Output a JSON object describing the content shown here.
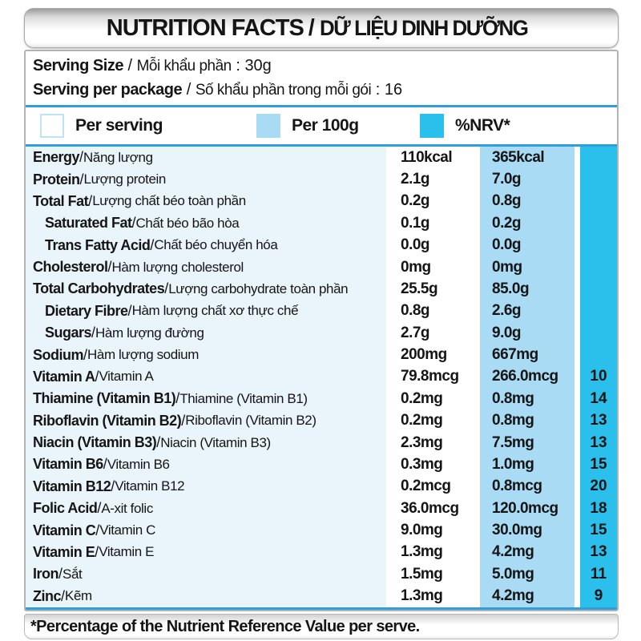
{
  "colors": {
    "nrv_cyan": "#2bbfeb",
    "per100g_blue": "#a9dbf4",
    "label_pale_blue": "#eaf4fb",
    "divider_blue": "#2e9fda",
    "panel_border_gray": "#b3b3b3"
  },
  "header": {
    "title_en": "NUTRITION FACTS",
    "sep": "/",
    "title_vi": "DỮ LIỆU DINH DƯỠNG"
  },
  "serving_info": {
    "lines": [
      {
        "en": "Serving Size",
        "sep": " / ",
        "vi": "Mỗi khẩu phần",
        "colon": " : ",
        "value": "30g"
      },
      {
        "en": "Serving per package",
        "sep": " / ",
        "vi": "Số khẩu phần trong mỗi gói",
        "colon": " : ",
        "value": "16"
      }
    ]
  },
  "legend": {
    "items": [
      {
        "label": "Per serving",
        "swatch": "per-serving-white"
      },
      {
        "label": "Per 100g",
        "swatch": "per-100g-light-blue"
      },
      {
        "label": "%NRV*",
        "swatch": "nrv-cyan"
      }
    ]
  },
  "table": {
    "separator": " / ",
    "columns": [
      "nutrient",
      "per_serving",
      "per_100g",
      "nrv_percent"
    ],
    "rows": [
      {
        "en": "Energy",
        "vi": "Năng lượng",
        "per_serving": "110kcal",
        "per_100g": "365kcal",
        "nrv": "",
        "indent": false
      },
      {
        "en": "Protein",
        "vi": "Lượng protein",
        "per_serving": "2.1g",
        "per_100g": "7.0g",
        "nrv": "",
        "indent": false
      },
      {
        "en": "Total Fat",
        "vi": "Lượng chất béo toàn phần",
        "per_serving": "0.2g",
        "per_100g": "0.8g",
        "nrv": "",
        "indent": false
      },
      {
        "en": "Saturated Fat",
        "vi": "Chất béo bão hòa",
        "per_serving": "0.1g",
        "per_100g": "0.2g",
        "nrv": "",
        "indent": true
      },
      {
        "en": "Trans Fatty Acid",
        "vi": "Chất béo chuyển hóa",
        "per_serving": "0.0g",
        "per_100g": "0.0g",
        "nrv": "",
        "indent": true
      },
      {
        "en": "Cholesterol",
        "vi": "Hàm lượng cholesterol",
        "per_serving": "0mg",
        "per_100g": "0mg",
        "nrv": "",
        "indent": false
      },
      {
        "en": "Total Carbohydrates",
        "vi": "Lượng carbohydrate toàn phần",
        "per_serving": "25.5g",
        "per_100g": "85.0g",
        "nrv": "",
        "indent": false
      },
      {
        "en": "Dietary Fibre",
        "vi": "Hàm lượng chất xơ thực chế",
        "per_serving": "0.8g",
        "per_100g": "2.6g",
        "nrv": "",
        "indent": true
      },
      {
        "en": "Sugars",
        "vi": "Hàm lượng đường",
        "per_serving": "2.7g",
        "per_100g": "9.0g",
        "nrv": "",
        "indent": true
      },
      {
        "en": "Sodium",
        "vi": "Hàm lượng sodium",
        "per_serving": "200mg",
        "per_100g": "667mg",
        "nrv": "",
        "indent": false
      },
      {
        "en": "Vitamin A",
        "vi": "Vitamin A",
        "per_serving": "79.8mcg",
        "per_100g": "266.0mcg",
        "nrv": "10",
        "indent": false
      },
      {
        "en": "Thiamine (Vitamin B1)",
        "vi": "Thiamine (Vitamin B1)",
        "per_serving": "0.2mg",
        "per_100g": "0.8mg",
        "nrv": "14",
        "indent": false
      },
      {
        "en": "Riboflavin (Vitamin B2)",
        "vi": "Riboflavin (Vitamin B2)",
        "per_serving": "0.2mg",
        "per_100g": "0.8mg",
        "nrv": "13",
        "indent": false
      },
      {
        "en": "Niacin (Vitamin B3)",
        "vi": "Niacin (Vitamin B3)",
        "per_serving": "2.3mg",
        "per_100g": "7.5mg",
        "nrv": "13",
        "indent": false
      },
      {
        "en": "Vitamin B6",
        "vi": "Vitamin B6",
        "per_serving": "0.3mg",
        "per_100g": "1.0mg",
        "nrv": "15",
        "indent": false
      },
      {
        "en": "Vitamin B12",
        "vi": "Vitamin B12",
        "per_serving": "0.2mcg",
        "per_100g": "0.8mcg",
        "nrv": "20",
        "indent": false
      },
      {
        "en": "Folic Acid",
        "vi": "A-xit folic",
        "per_serving": "36.0mcg",
        "per_100g": "120.0mcg",
        "nrv": "18",
        "indent": false
      },
      {
        "en": "Vitamin C",
        "vi": "Vitamin C",
        "per_serving": "9.0mg",
        "per_100g": "30.0mg",
        "nrv": "15",
        "indent": false
      },
      {
        "en": "Vitamin E",
        "vi": "Vitamin E",
        "per_serving": "1.3mg",
        "per_100g": "4.2mg",
        "nrv": "13",
        "indent": false
      },
      {
        "en": "Iron",
        "vi": "Sắt",
        "per_serving": "1.5mg",
        "per_100g": "5.0mg",
        "nrv": "11",
        "indent": false
      },
      {
        "en": "Zinc",
        "vi": "Kẽm",
        "per_serving": "1.3mg",
        "per_100g": "4.2mg",
        "nrv": "9",
        "indent": false
      }
    ]
  },
  "footnote": "*Percentage of the Nutrient Reference Value per serve."
}
